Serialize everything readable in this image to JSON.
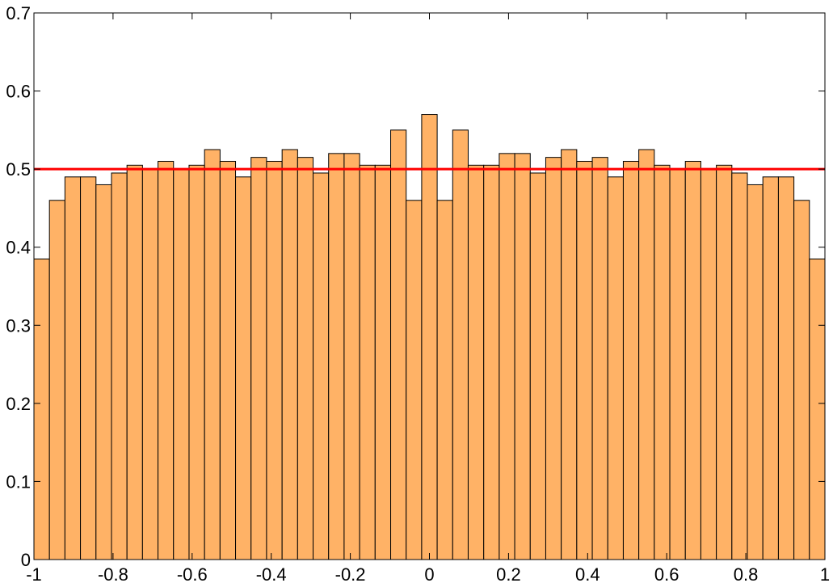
{
  "chart_data": {
    "type": "histogram",
    "bins": [
      -1,
      -0.9608,
      -0.9216,
      -0.8824,
      -0.8431,
      -0.8039,
      -0.7647,
      -0.7255,
      -0.6863,
      -0.6471,
      -0.6078,
      -0.5686,
      -0.5294,
      -0.4902,
      -0.451,
      -0.4118,
      -0.3725,
      -0.3333,
      -0.2941,
      -0.2549,
      -0.2157,
      -0.1765,
      -0.1373,
      -0.098,
      -0.0588,
      -0.0196,
      0.0196,
      0.0588,
      0.098,
      0.1373,
      0.1765,
      0.2157,
      0.2549,
      0.2941,
      0.3333,
      0.3725,
      0.4118,
      0.451,
      0.4902,
      0.5294,
      0.5686,
      0.6078,
      0.6471,
      0.6863,
      0.7255,
      0.7647,
      0.8039,
      0.8431,
      0.8824,
      0.9216,
      0.9608,
      1
    ],
    "values": [
      0.385,
      0.46,
      0.49,
      0.49,
      0.48,
      0.495,
      0.505,
      0.5,
      0.51,
      0.5,
      0.505,
      0.525,
      0.51,
      0.49,
      0.515,
      0.51,
      0.525,
      0.515,
      0.495,
      0.52,
      0.52,
      0.505,
      0.505,
      0.55,
      0.46,
      0.57,
      0.46,
      0.55,
      0.505,
      0.505,
      0.52,
      0.52,
      0.495,
      0.515,
      0.525,
      0.51,
      0.515,
      0.49,
      0.51,
      0.525,
      0.505,
      0.5,
      0.51,
      0.5,
      0.505,
      0.495,
      0.48,
      0.49,
      0.49,
      0.46,
      0.385
    ],
    "color": "#ffb266",
    "reference_line": {
      "value": 0.5,
      "color": "#ff0000"
    },
    "xlim": [
      -1,
      1
    ],
    "xticks": [
      -1,
      -0.8,
      -0.6,
      -0.4,
      -0.2,
      0,
      0.2,
      0.4,
      0.6,
      0.8,
      1
    ],
    "ylim": [
      0,
      0.7
    ],
    "yticks": [
      0,
      0.1,
      0.2,
      0.3,
      0.4,
      0.5,
      0.6,
      0.7
    ]
  }
}
